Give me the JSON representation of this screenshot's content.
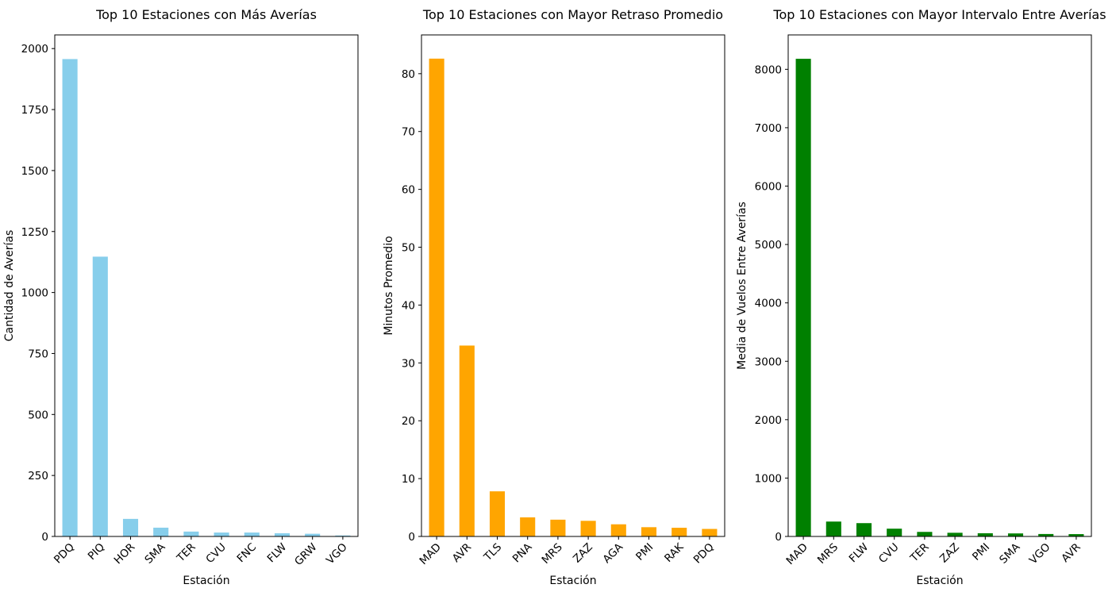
{
  "chart_data": [
    {
      "type": "bar",
      "title": "Top 10 Estaciones con Más Averías",
      "xlabel": "Estación",
      "ylabel": "Cantidad de Averías",
      "categories": [
        "PDQ",
        "PIQ",
        "HOR",
        "SMA",
        "TER",
        "CVU",
        "FNC",
        "FLW",
        "GRW",
        "VGO"
      ],
      "values": [
        1957,
        1147,
        72,
        36,
        20,
        16,
        16,
        13,
        11,
        4
      ],
      "ylim": [
        0,
        2056
      ],
      "yticks": [
        0,
        250,
        500,
        750,
        1000,
        1250,
        1500,
        1750,
        2000
      ],
      "color": "#87CEEB",
      "grid": false,
      "legend": "none"
    },
    {
      "type": "bar",
      "title": "Top 10 Estaciones con Mayor Retraso Promedio",
      "xlabel": "Estación",
      "ylabel": "Minutos Promedio",
      "categories": [
        "MAD",
        "AVR",
        "TLS",
        "PNA",
        "MRS",
        "ZAZ",
        "AGA",
        "PMI",
        "RAK",
        "PDQ"
      ],
      "values": [
        82.6,
        33.0,
        7.8,
        3.3,
        2.9,
        2.7,
        2.1,
        1.6,
        1.5,
        1.3
      ],
      "ylim": [
        0,
        86.7
      ],
      "yticks": [
        0,
        10,
        20,
        30,
        40,
        50,
        60,
        70,
        80
      ],
      "color": "#FFA500",
      "grid": false,
      "legend": "none"
    },
    {
      "type": "bar",
      "title": "Top 10 Estaciones con Mayor Intervalo Entre Averías",
      "xlabel": "Estación",
      "ylabel": "Media de Vuelos Entre Averías",
      "categories": [
        "MAD",
        "MRS",
        "FLW",
        "CVU",
        "TER",
        "ZAZ",
        "PMI",
        "SMA",
        "VGO",
        "AVR"
      ],
      "values": [
        8180,
        255,
        228,
        133,
        78,
        63,
        55,
        52,
        42,
        40
      ],
      "ylim": [
        0,
        8589
      ],
      "yticks": [
        0,
        1000,
        2000,
        3000,
        4000,
        5000,
        6000,
        7000,
        8000
      ],
      "color": "#008000",
      "grid": false,
      "legend": "none"
    }
  ]
}
